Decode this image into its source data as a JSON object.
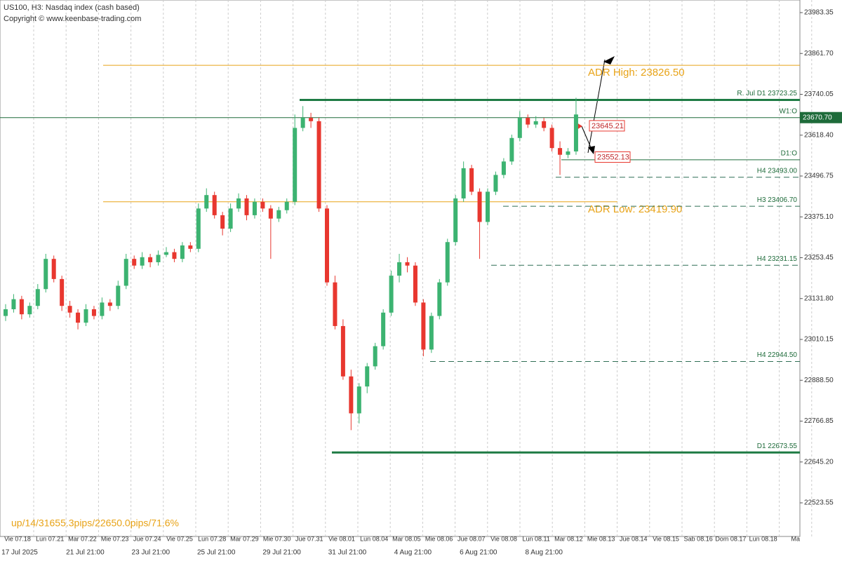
{
  "chart_data": {
    "type": "candlestick",
    "title": "US100, H3:  Nasdaq index (cash based)",
    "subtitle": "Copyright © www.keenbase-trading.com",
    "annotation": "up/14/31655.3pips/22650.0pips/71.6%",
    "up_color": "#3cb371",
    "down_color": "#e8372f",
    "ylim": [
      22423.4,
      24020.9
    ],
    "yticks": [
      23983.35,
      {
        "value": 23861.7,
        "label": "23861.70"
      },
      23740.05,
      {
        "value": 23618.4,
        "label": "23618.40"
      },
      23496.75,
      {
        "value": 23375.1,
        "label": "23375.10"
      },
      23253.45,
      {
        "value": 23131.8,
        "label": "23131.80"
      },
      23010.15,
      {
        "value": 22888.5,
        "label": "22888.50"
      },
      22766.85,
      {
        "value": 22645.2,
        "label": "22645.20"
      },
      22523.55
    ],
    "day_labels": [
      "Vie 07.18",
      "Lun 07.21",
      "Mar 07.22",
      "Mie 07.23",
      "Jue 07.24",
      "Vie 07.25",
      "Lun 07.28",
      "Mar 07.29",
      "Mie 07.30",
      "Jue 07.31",
      "Vie 08.01",
      "Lun 08.04",
      "Mar 08.05",
      "Mie 08.06",
      "Jue 08.07",
      "Vie 08.08",
      "Lun 08.11",
      "Mar 08.12",
      "Mie 08.13",
      "Jue 08.14",
      "Vie 08.15",
      "Sab 08.16",
      "Dom 08.17",
      "Lun 08.18",
      "Ma"
    ],
    "date_labels": [
      "17 Jul 2025",
      "21 Jul 21:00",
      "23 Jul 21:00",
      "25 Jul 21:00",
      "29 Jul 21:00",
      "31 Jul 21:00",
      "4 Aug 21:00",
      "6 Aug 21:00",
      "8 Aug 21:00"
    ],
    "candles": [
      [
        23080,
        23115,
        23065,
        23100
      ],
      [
        23100,
        23145,
        23090,
        23130
      ],
      [
        23130,
        23140,
        23070,
        23085
      ],
      [
        23085,
        23120,
        23075,
        23110
      ],
      [
        23110,
        23175,
        23100,
        23160
      ],
      [
        23160,
        23265,
        23150,
        23250
      ],
      [
        23250,
        23260,
        23180,
        23190
      ],
      [
        23190,
        23200,
        23095,
        23110
      ],
      [
        23110,
        23125,
        23075,
        23090
      ],
      [
        23090,
        23100,
        23040,
        23060
      ],
      [
        23060,
        23115,
        23050,
        23100
      ],
      [
        23100,
        23110,
        23070,
        23080
      ],
      [
        23080,
        23135,
        23070,
        23120
      ],
      [
        23120,
        23130,
        23095,
        23110
      ],
      [
        23110,
        23185,
        23100,
        23170
      ],
      [
        23170,
        23265,
        23160,
        23250
      ],
      [
        23250,
        23260,
        23220,
        23230
      ],
      [
        23230,
        23270,
        23220,
        23255
      ],
      [
        23255,
        23265,
        23225,
        23240
      ],
      [
        23240,
        23275,
        23230,
        23262
      ],
      [
        23262,
        23285,
        23255,
        23270
      ],
      [
        23270,
        23280,
        23240,
        23250
      ],
      [
        23250,
        23300,
        23240,
        23290
      ],
      [
        23290,
        23300,
        23270,
        23280
      ],
      [
        23280,
        23415,
        23270,
        23400
      ],
      [
        23400,
        23460,
        23390,
        23440
      ],
      [
        23440,
        23450,
        23370,
        23380
      ],
      [
        23380,
        23390,
        23320,
        23340
      ],
      [
        23340,
        23415,
        23330,
        23400
      ],
      [
        23400,
        23445,
        23390,
        23430
      ],
      [
        23430,
        23440,
        23365,
        23380
      ],
      [
        23380,
        23430,
        23370,
        23420
      ],
      [
        23420,
        23430,
        23390,
        23400
      ],
      [
        23400,
        23410,
        23250,
        23370
      ],
      [
        23370,
        23405,
        23360,
        23395
      ],
      [
        23395,
        23430,
        23385,
        23420
      ],
      [
        23420,
        23680,
        23410,
        23640
      ],
      [
        23640,
        23705,
        23630,
        23670
      ],
      [
        23670,
        23685,
        23640,
        23660
      ],
      [
        23660,
        23670,
        23390,
        23400
      ],
      [
        23400,
        23410,
        23170,
        23180
      ],
      [
        23180,
        23200,
        23040,
        23050
      ],
      [
        23050,
        23070,
        22890,
        22900
      ],
      [
        22900,
        22920,
        22740,
        22790
      ],
      [
        22790,
        22880,
        22760,
        22870
      ],
      [
        22870,
        22940,
        22850,
        22930
      ],
      [
        22930,
        23000,
        22920,
        22990
      ],
      [
        22990,
        23100,
        22980,
        23090
      ],
      [
        23090,
        23215,
        23080,
        23200
      ],
      [
        23200,
        23265,
        23180,
        23240
      ],
      [
        23240,
        23255,
        23210,
        23230
      ],
      [
        23230,
        23240,
        23110,
        23120
      ],
      [
        23120,
        23130,
        22960,
        22980
      ],
      [
        22980,
        23090,
        22970,
        23080
      ],
      [
        23080,
        23190,
        23070,
        23180
      ],
      [
        23180,
        23310,
        23170,
        23300
      ],
      [
        23300,
        23440,
        23290,
        23430
      ],
      [
        23430,
        23540,
        23420,
        23520
      ],
      [
        23520,
        23530,
        23440,
        23450
      ],
      [
        23450,
        23460,
        23250,
        23360
      ],
      [
        23360,
        23460,
        23350,
        23450
      ],
      [
        23450,
        23510,
        23440,
        23500
      ],
      [
        23500,
        23550,
        23490,
        23540
      ],
      [
        23540,
        23620,
        23530,
        23610
      ],
      [
        23610,
        23690,
        23600,
        23670
      ],
      [
        23670,
        23680,
        23640,
        23650
      ],
      [
        23650,
        23675,
        23640,
        23660
      ],
      [
        23660,
        23670,
        23630,
        23640
      ],
      [
        23640,
        23650,
        23570,
        23580
      ],
      [
        23580,
        23600,
        23500,
        23560
      ],
      [
        23560,
        23580,
        23550,
        23570
      ],
      [
        23570,
        23730,
        23560,
        23680
      ]
    ],
    "levels": [
      {
        "label": "ADR High: 23826.50",
        "value": 23826.5,
        "style": "adr"
      },
      {
        "label": "R. Jul D1 23723.25",
        "value": 23723.25,
        "style": "strong"
      },
      {
        "label": "W1:O",
        "value": 23670.7,
        "price_label": "23670.70",
        "style": "thin"
      },
      {
        "label": "D1:O",
        "value": 23545,
        "style": "thin"
      },
      {
        "label": "H4 23493.00",
        "value": 23493,
        "style": "dash"
      },
      {
        "label": "ADR Low: 23419.90",
        "value": 23419.9,
        "style": "adr"
      },
      {
        "label": "H3 23406.70",
        "value": 23406.7,
        "style": "dash"
      },
      {
        "label": "H4 23231.15",
        "value": 23231.15,
        "style": "dash"
      },
      {
        "label": "H4 22944.50",
        "value": 22944.5,
        "style": "dash"
      },
      {
        "label": "D1 22673.55",
        "value": 22673.55,
        "style": "strong"
      }
    ],
    "markers": [
      23645.21,
      23552.13
    ]
  }
}
